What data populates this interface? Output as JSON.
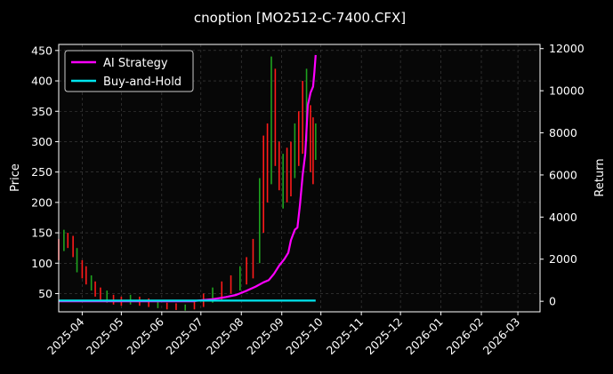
{
  "chart_data": {
    "type": "line",
    "title": "cnoption [MO2512-C-7400.CFX]",
    "xlabel": "",
    "ylabel_left": "Price",
    "ylabel_right": "Return",
    "ylim_left": [
      20,
      460
    ],
    "ylim_right": [
      -500,
      12200
    ],
    "yticks_left": [
      50,
      100,
      150,
      200,
      250,
      300,
      350,
      400,
      450
    ],
    "yticks_right": [
      0,
      2000,
      4000,
      6000,
      8000,
      10000,
      12000
    ],
    "xlim": [
      "2025-03-14",
      "2026-03-18"
    ],
    "xticks": [
      {
        "date": "2025-04-01",
        "label": "2025-04"
      },
      {
        "date": "2025-05-01",
        "label": "2025-05"
      },
      {
        "date": "2025-06-01",
        "label": "2025-06"
      },
      {
        "date": "2025-07-01",
        "label": "2025-07"
      },
      {
        "date": "2025-08-01",
        "label": "2025-08"
      },
      {
        "date": "2025-09-01",
        "label": "2025-09"
      },
      {
        "date": "2025-10-01",
        "label": "2025-10"
      },
      {
        "date": "2025-11-01",
        "label": "2025-11"
      },
      {
        "date": "2025-12-01",
        "label": "2025-12"
      },
      {
        "date": "2026-01-01",
        "label": "2026-01"
      },
      {
        "date": "2026-02-01",
        "label": "2026-02"
      },
      {
        "date": "2026-03-01",
        "label": "2026-03"
      }
    ],
    "grid": true,
    "legend_position": "top-left",
    "colors": {
      "background": "#000000",
      "ai_strategy": "#ff00ff",
      "buy_and_hold": "#00e5ee",
      "up_candle": "#1fa31f",
      "down_candle": "#ff1a1a",
      "grid": "#444444",
      "text": "#ffffff"
    },
    "series": [
      {
        "name": "AI Strategy",
        "axis": "right",
        "points": [
          [
            "2025-03-14",
            0
          ],
          [
            "2025-05-01",
            0
          ],
          [
            "2025-06-01",
            0
          ],
          [
            "2025-06-25",
            0
          ],
          [
            "2025-07-01",
            50
          ],
          [
            "2025-07-10",
            100
          ],
          [
            "2025-07-20",
            200
          ],
          [
            "2025-07-28",
            300
          ],
          [
            "2025-08-05",
            500
          ],
          [
            "2025-08-12",
            700
          ],
          [
            "2025-08-18",
            900
          ],
          [
            "2025-08-22",
            1000
          ],
          [
            "2025-08-26",
            1300
          ],
          [
            "2025-08-30",
            1700
          ],
          [
            "2025-09-03",
            2000
          ],
          [
            "2025-09-06",
            2300
          ],
          [
            "2025-09-08",
            2900
          ],
          [
            "2025-09-11",
            3400
          ],
          [
            "2025-09-13",
            3500
          ],
          [
            "2025-09-15",
            4600
          ],
          [
            "2025-09-17",
            6000
          ],
          [
            "2025-09-19",
            7000
          ],
          [
            "2025-09-21",
            9300
          ],
          [
            "2025-09-23",
            9900
          ],
          [
            "2025-09-25",
            10200
          ],
          [
            "2025-09-26",
            10900
          ],
          [
            "2025-09-27",
            11700
          ]
        ]
      },
      {
        "name": "Buy-and-Hold",
        "axis": "right",
        "points": [
          [
            "2025-03-14",
            30
          ],
          [
            "2025-09-27",
            30
          ]
        ]
      }
    ],
    "price_bars": [
      [
        "2025-03-14",
        105,
        140
      ],
      [
        "2025-03-18",
        120,
        155
      ],
      [
        "2025-03-21",
        125,
        150
      ],
      [
        "2025-03-25",
        110,
        145
      ],
      [
        "2025-03-28",
        85,
        125
      ],
      [
        "2025-04-01",
        75,
        105
      ],
      [
        "2025-04-04",
        65,
        95
      ],
      [
        "2025-04-08",
        55,
        80
      ],
      [
        "2025-04-11",
        45,
        70
      ],
      [
        "2025-04-15",
        40,
        60
      ],
      [
        "2025-04-20",
        35,
        55
      ],
      [
        "2025-04-25",
        32,
        48
      ],
      [
        "2025-05-01",
        30,
        45
      ],
      [
        "2025-05-08",
        32,
        48
      ],
      [
        "2025-05-15",
        30,
        45
      ],
      [
        "2025-05-22",
        28,
        42
      ],
      [
        "2025-05-29",
        26,
        38
      ],
      [
        "2025-06-05",
        24,
        35
      ],
      [
        "2025-06-12",
        23,
        34
      ],
      [
        "2025-06-19",
        22,
        32
      ],
      [
        "2025-06-26",
        24,
        38
      ],
      [
        "2025-07-03",
        28,
        50
      ],
      [
        "2025-07-10",
        35,
        60
      ],
      [
        "2025-07-17",
        40,
        70
      ],
      [
        "2025-07-24",
        50,
        80
      ],
      [
        "2025-07-31",
        55,
        95
      ],
      [
        "2025-08-05",
        65,
        110
      ],
      [
        "2025-08-10",
        75,
        140
      ],
      [
        "2025-08-15",
        100,
        240
      ],
      [
        "2025-08-18",
        150,
        310
      ],
      [
        "2025-08-21",
        200,
        330
      ],
      [
        "2025-08-24",
        230,
        440
      ],
      [
        "2025-08-27",
        260,
        420
      ],
      [
        "2025-08-30",
        220,
        300
      ],
      [
        "2025-09-02",
        190,
        280
      ],
      [
        "2025-09-05",
        200,
        290
      ],
      [
        "2025-09-08",
        210,
        300
      ],
      [
        "2025-09-11",
        240,
        330
      ],
      [
        "2025-09-14",
        260,
        350
      ],
      [
        "2025-09-17",
        280,
        400
      ],
      [
        "2025-09-20",
        300,
        420
      ],
      [
        "2025-09-23",
        250,
        360
      ],
      [
        "2025-09-25",
        230,
        340
      ],
      [
        "2025-09-27",
        270,
        330
      ]
    ]
  },
  "legend": {
    "items": [
      {
        "label": "AI Strategy",
        "color": "#ff00ff"
      },
      {
        "label": "Buy-and-Hold",
        "color": "#00e5ee"
      }
    ]
  }
}
